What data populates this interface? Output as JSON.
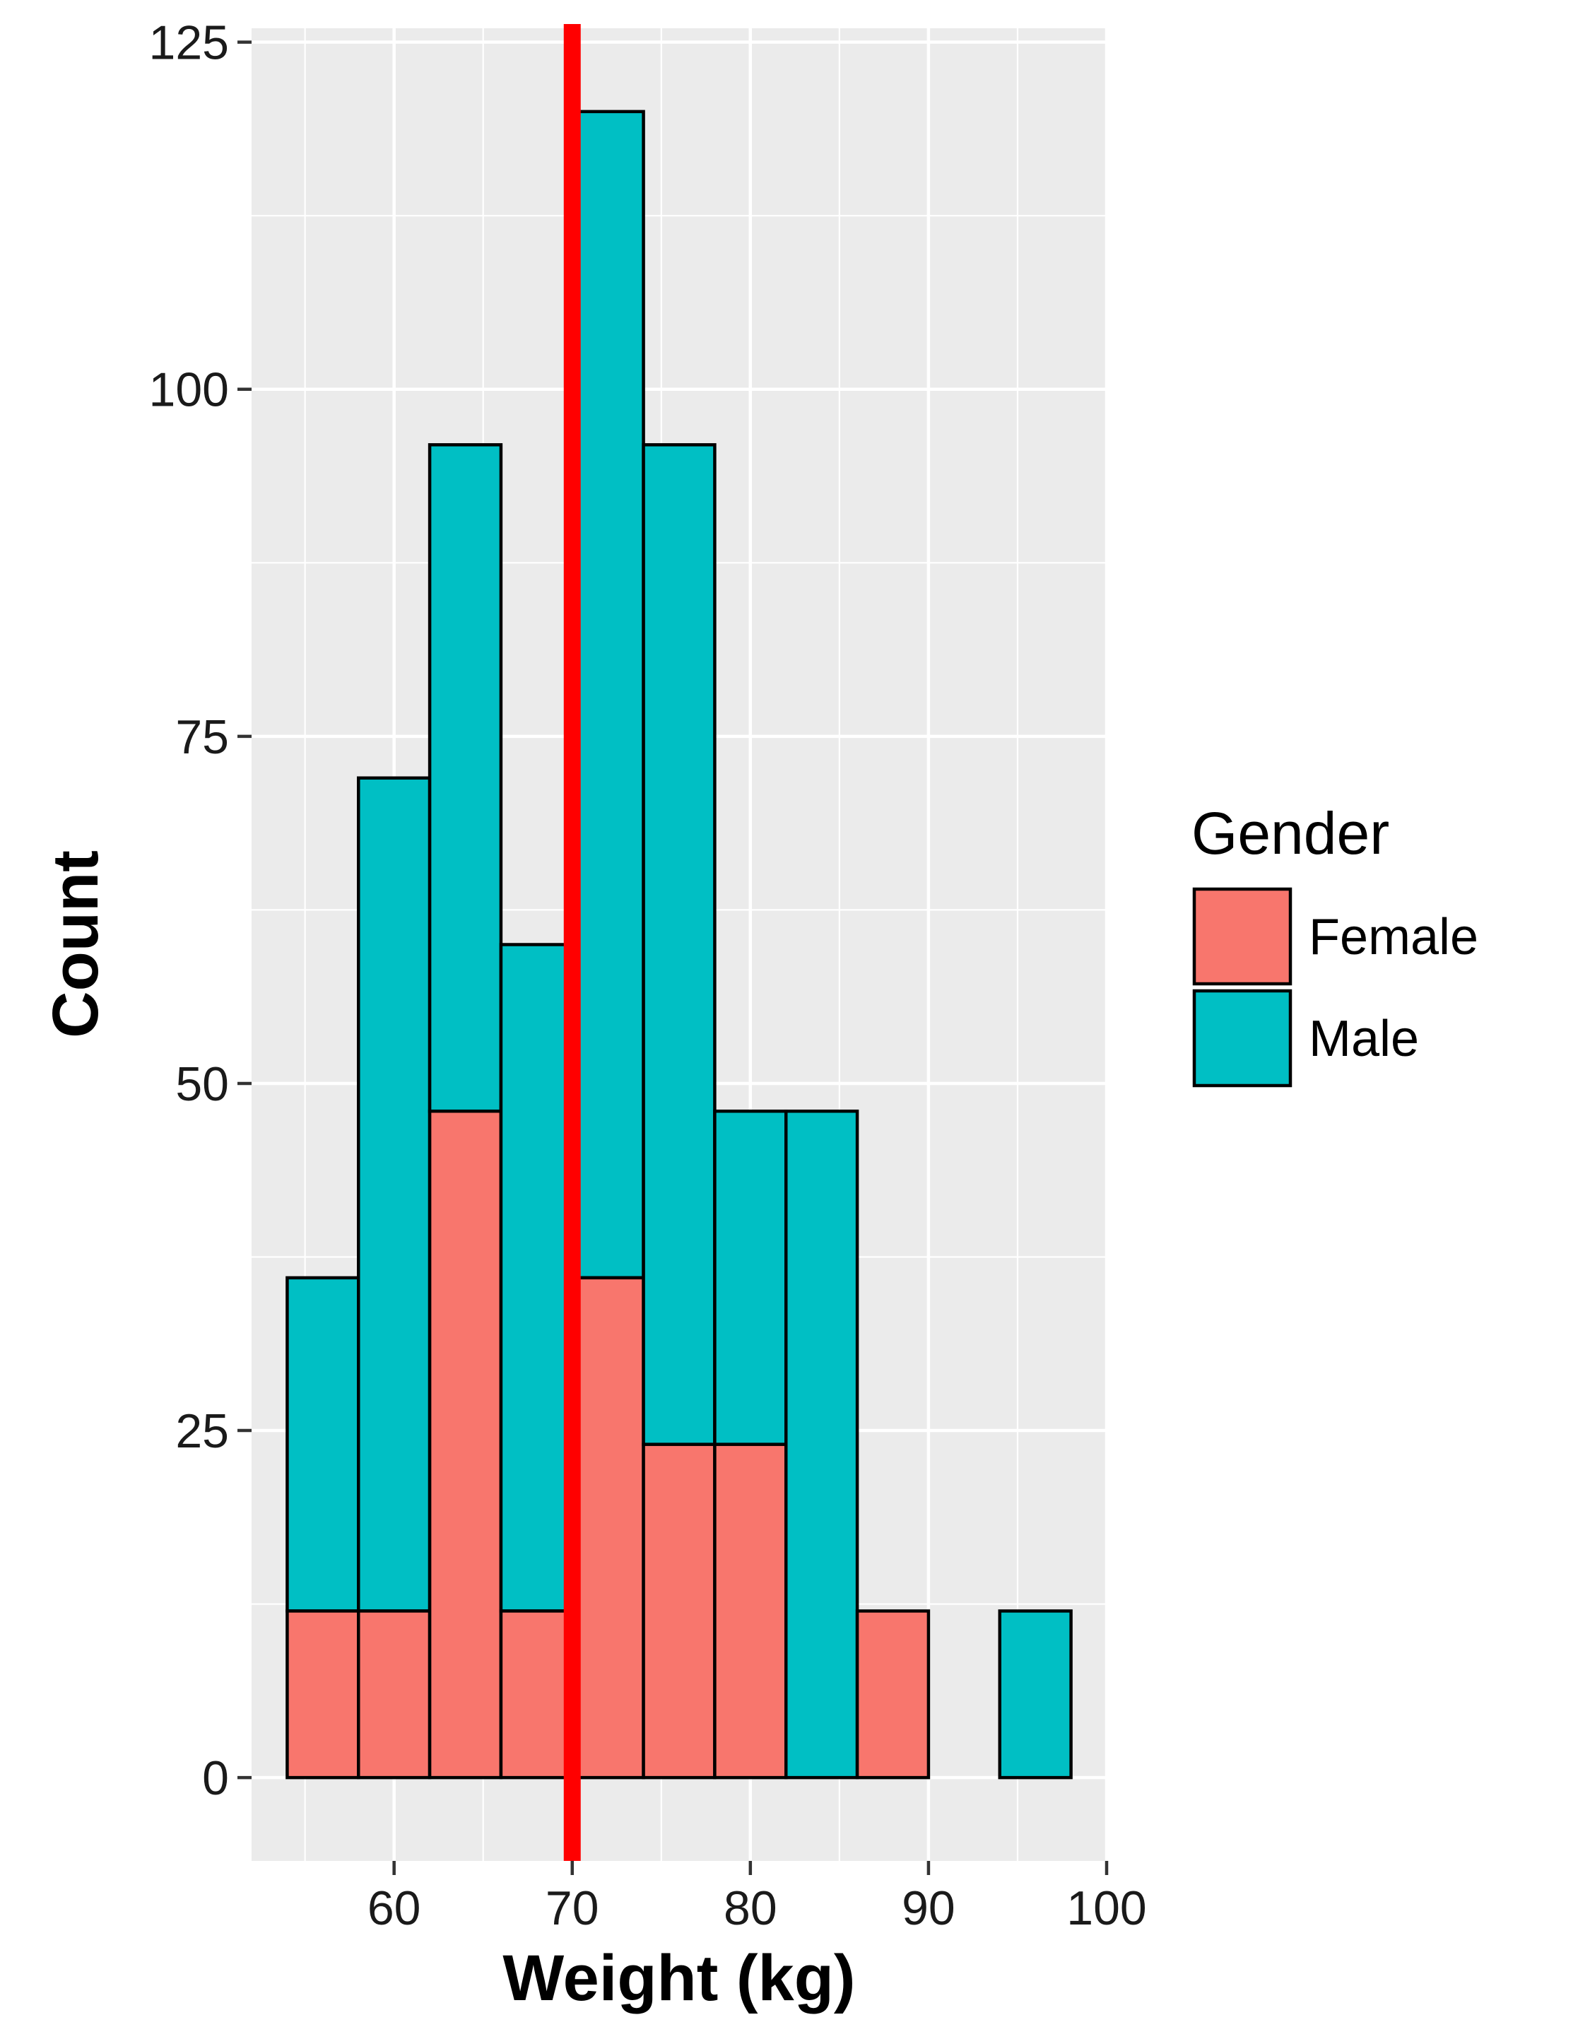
{
  "chart_data": {
    "type": "bar",
    "stacked": true,
    "histogram": true,
    "bin_width": 4,
    "x": [
      56,
      60,
      64,
      68,
      72,
      76,
      80,
      84,
      88,
      92,
      96
    ],
    "series": [
      {
        "name": "Female",
        "color": "#F8766D",
        "values": [
          12,
          12,
          48,
          12,
          36,
          24,
          24,
          0,
          12,
          0,
          0
        ]
      },
      {
        "name": "Male",
        "color": "#00BFC4",
        "values": [
          24,
          60,
          48,
          48,
          84,
          72,
          24,
          48,
          0,
          0,
          12
        ]
      }
    ],
    "reference_line": {
      "x": 70,
      "color": "#FF0000"
    },
    "xlabel": "Weight (kg)",
    "ylabel": "Count",
    "xlim": [
      52,
      100
    ],
    "ylim": [
      -6,
      126
    ],
    "x_ticks": [
      60,
      70,
      80,
      90,
      100
    ],
    "y_ticks": [
      0,
      25,
      50,
      75,
      100,
      125
    ],
    "x_tick_labels": [
      "60",
      "70",
      "80",
      "90",
      "100"
    ],
    "y_tick_labels": [
      "0",
      "25",
      "50",
      "75",
      "100",
      "125"
    ],
    "grid": true,
    "panel_background": "#EBEBEB",
    "legend": {
      "title": "Gender",
      "placement": "right",
      "entries": [
        "Female",
        "Male"
      ]
    }
  }
}
